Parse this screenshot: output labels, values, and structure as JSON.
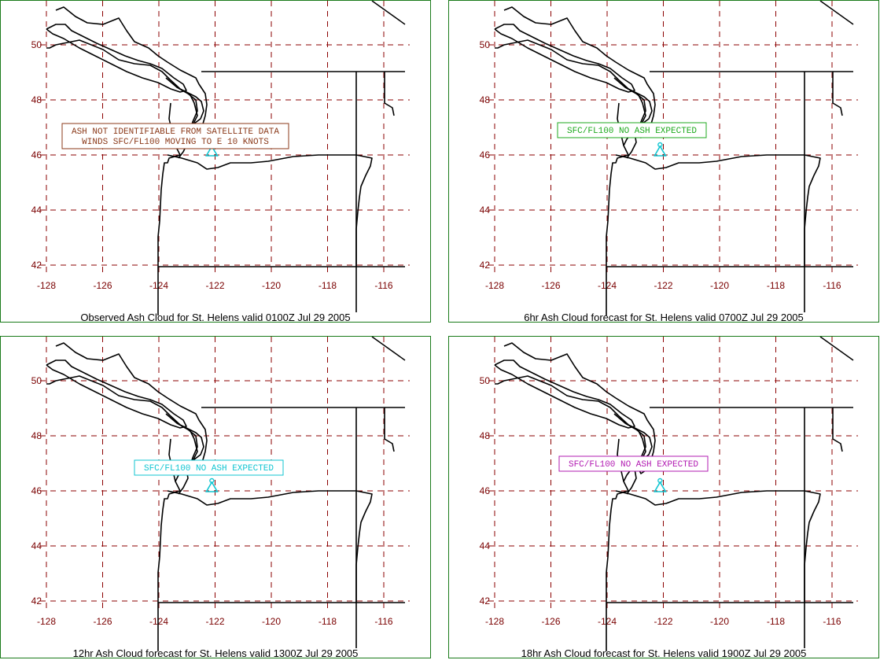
{
  "panels": [
    {
      "caption": "Observed Ash Cloud for St.  Helens valid 0100Z Jul 29 2005",
      "label_lines": [
        "ASH NOT IDENTIFIABLE FROM SATELLITE DATA",
        "WINDS SFC/FL100 MOVING TO E 10 KNOTS"
      ],
      "label_color": "#8b3a1a"
    },
    {
      "caption": "6hr Ash Cloud forecast for St.  Helens valid 0700Z Jul 29 2005",
      "label_lines": [
        "SFC/FL100 NO ASH EXPECTED"
      ],
      "label_color": "#1faa1f"
    },
    {
      "caption": "12hr Ash Cloud forecast for St.  Helens valid 1300Z Jul 29 2005",
      "label_lines": [
        "SFC/FL100 NO ASH EXPECTED"
      ],
      "label_color": "#12c6d2"
    },
    {
      "caption": "18hr Ash Cloud forecast for St.  Helens valid 1900Z Jul 29 2005",
      "label_lines": [
        "SFC/FL100 NO ASH EXPECTED"
      ],
      "label_color": "#b21bb2"
    }
  ],
  "axes": {
    "lon_ticks": [
      "-128",
      "-126",
      "-124",
      "-122",
      "-120",
      "-118",
      "-116"
    ],
    "lat_ticks": [
      "50",
      "48",
      "46",
      "44",
      "42"
    ]
  },
  "colors": {
    "panel_border": "#1a7a1a",
    "grid": "#8b0000",
    "tick_text": "#7a0000",
    "volcano_symbol": "#12c6d2",
    "coastline": "#000000"
  },
  "symbols": {
    "volcano": "volcano-icon"
  }
}
